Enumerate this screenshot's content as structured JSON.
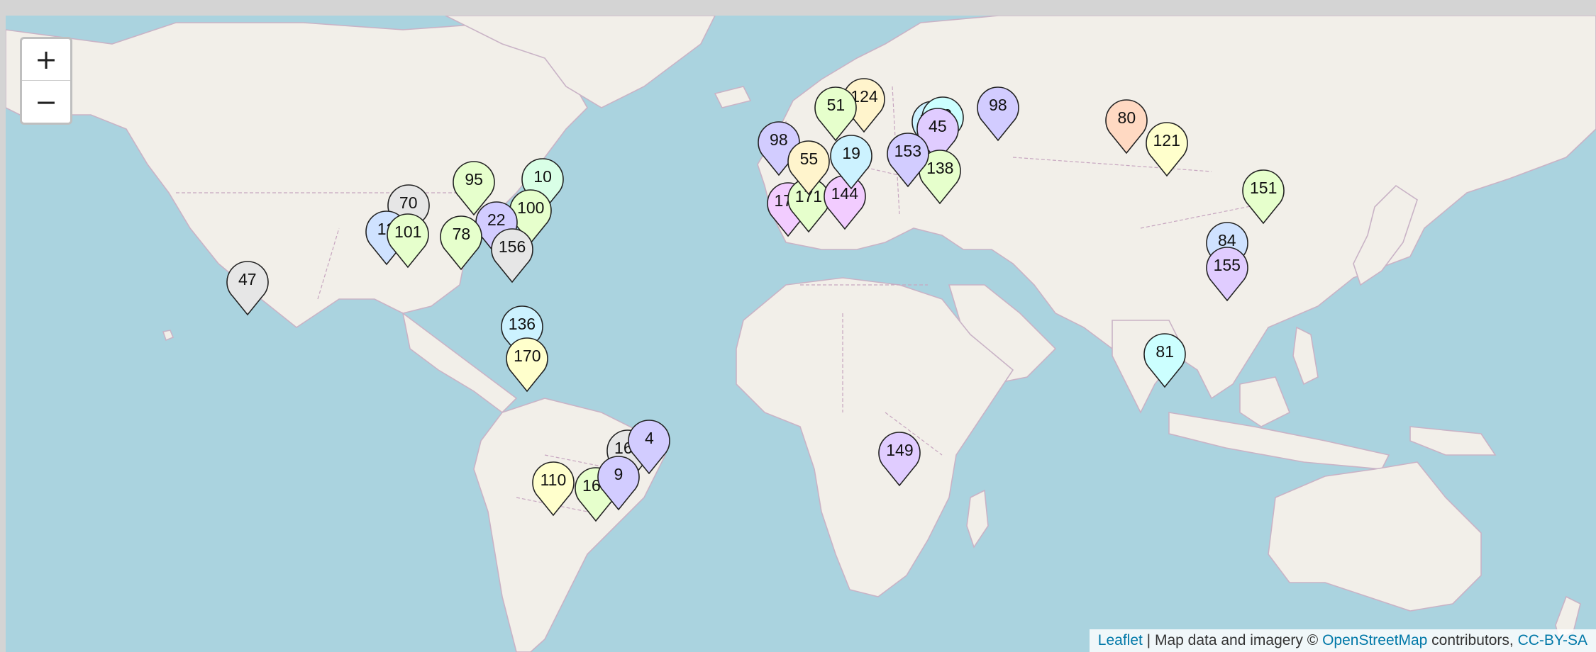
{
  "zoom": {
    "in_label": "+",
    "out_label": "−"
  },
  "attribution": {
    "leaflet": "Leaflet",
    "sep": " | ",
    "text1": "Map data and imagery © ",
    "osm": "OpenStreetMap",
    "text2": " contributors, ",
    "license": "CC-BY-SA"
  },
  "colors": {
    "ocean": "#aad3df",
    "land": "#f2efe9",
    "pin_palette": [
      "#ffd9c2",
      "#ffffcc",
      "#e6ffcc",
      "#d2ccff",
      "#ccf2ff",
      "#e6e6e6",
      "#ffccdd",
      "#f2ccff",
      "#d9ffe6",
      "#cfe2ff"
    ]
  },
  "markers": [
    {
      "label": "124",
      "lat": 59.3,
      "lng": 18.1,
      "color": "#fff4cc"
    },
    {
      "label": "80",
      "lat": 56.0,
      "lng": 92.9,
      "color": "#ffd9c2"
    },
    {
      "label": "121",
      "lat": 52.3,
      "lng": 104.3,
      "color": "#ffffcc"
    },
    {
      "label": "151",
      "lat": 43.1,
      "lng": 131.9,
      "color": "#e6ffcc"
    },
    {
      "label": "162",
      "lat": 55.8,
      "lng": 37.6,
      "color": "#ccf2ff"
    },
    {
      "label": "20",
      "lat": 56.5,
      "lng": 40.5,
      "color": "#ccffff"
    },
    {
      "label": "98",
      "lat": 58.0,
      "lng": 56.2,
      "color": "#d2ccff"
    },
    {
      "label": "45",
      "lat": 54.7,
      "lng": 39.0,
      "color": "#e0ccff"
    },
    {
      "label": "138",
      "lat": 47.2,
      "lng": 39.7,
      "color": "#e6ffcc"
    },
    {
      "label": "153",
      "lat": 50.4,
      "lng": 30.5,
      "color": "#d2ccff"
    },
    {
      "label": "172",
      "lat": 40.4,
      "lng": -3.7,
      "color": "#f2ccff"
    },
    {
      "label": "171",
      "lat": 41.4,
      "lng": 2.2,
      "color": "#e6ffcc"
    },
    {
      "label": "144",
      "lat": 41.9,
      "lng": 12.5,
      "color": "#f2ccff"
    },
    {
      "label": "98",
      "lat": 52.4,
      "lng": -6.3,
      "color": "#d2ccff"
    },
    {
      "label": "51",
      "lat": 58.0,
      "lng": 10.0,
      "color": "#e6ffcc"
    },
    {
      "label": "19",
      "lat": 50.0,
      "lng": 14.4,
      "color": "#ccf2ff"
    },
    {
      "label": "55",
      "lat": 48.9,
      "lng": 2.3,
      "color": "#fff4cc"
    },
    {
      "label": "84",
      "lat": 31.2,
      "lng": 121.5,
      "color": "#cfe2ff"
    },
    {
      "label": "155",
      "lat": 25.0,
      "lng": 121.5,
      "color": "#e0ccff"
    },
    {
      "label": "81",
      "lat": 1.3,
      "lng": 103.8,
      "color": "#ccffff"
    },
    {
      "label": "149",
      "lat": -25.9,
      "lng": 28.2,
      "color": "#e0ccff"
    },
    {
      "label": "70",
      "lat": 40.0,
      "lng": -111.9,
      "color": "#e6e6e6"
    },
    {
      "label": "12",
      "lat": 34.0,
      "lng": -118.2,
      "color": "#cfe2ff"
    },
    {
      "label": "101",
      "lat": 33.4,
      "lng": -112.0,
      "color": "#e6ffcc"
    },
    {
      "label": "95",
      "lat": 44.9,
      "lng": -93.2,
      "color": "#e6ffcc"
    },
    {
      "label": "10",
      "lat": 45.5,
      "lng": -73.6,
      "color": "#d9ffe6"
    },
    {
      "label": "100",
      "lat": 38.9,
      "lng": -77.0,
      "color": "#e6ffcc"
    },
    {
      "label": "22",
      "lat": 36.1,
      "lng": -86.8,
      "color": "#d2ccff"
    },
    {
      "label": "78",
      "lat": 32.8,
      "lng": -96.8,
      "color": "#e6ffcc"
    },
    {
      "label": "156",
      "lat": 29.7,
      "lng": -82.3,
      "color": "#e6e6e6"
    },
    {
      "label": "47",
      "lat": 21.3,
      "lng": -157.8,
      "color": "#e6e6e6"
    },
    {
      "label": "136",
      "lat": 9.0,
      "lng": -79.5,
      "color": "#ccf2ff"
    },
    {
      "label": "170",
      "lat": 0.0,
      "lng": -78.0,
      "color": "#ffffcc"
    },
    {
      "label": "161",
      "lat": -25.4,
      "lng": -49.3,
      "color": "#e6e6e6"
    },
    {
      "label": "163",
      "lat": -34.6,
      "lng": -58.4,
      "color": "#e6ffcc"
    },
    {
      "label": "110",
      "lat": -33.4,
      "lng": -70.6,
      "color": "#ffffcc"
    },
    {
      "label": "4",
      "lat": -22.9,
      "lng": -43.2,
      "color": "#d2ccff"
    },
    {
      "label": "9",
      "lat": -32.0,
      "lng": -52.0,
      "color": "#d2ccff"
    }
  ]
}
